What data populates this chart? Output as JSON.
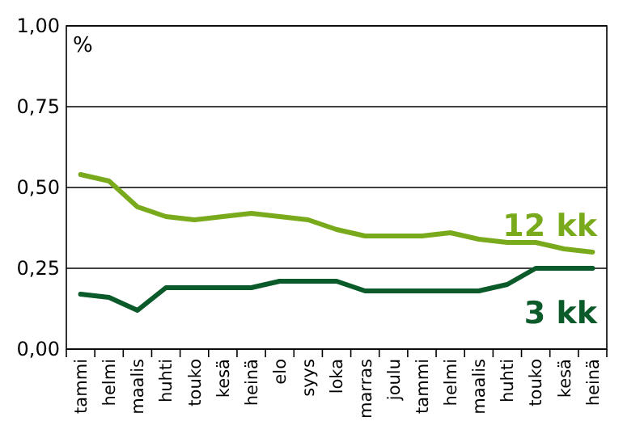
{
  "chart_data": {
    "type": "line",
    "ylabel": "%",
    "categories": [
      "tammi",
      "helmi",
      "maalis",
      "huhti",
      "touko",
      "kesä",
      "heinä",
      "elo",
      "syys",
      "loka",
      "marras",
      "joulu",
      "tammi",
      "helmi",
      "maalis",
      "huhti",
      "touko",
      "kesä",
      "heinä"
    ],
    "series": [
      {
        "name": "12 kk",
        "color": "#78aa1c",
        "values": [
          0.54,
          0.52,
          0.44,
          0.41,
          0.4,
          0.41,
          0.42,
          0.41,
          0.4,
          0.37,
          0.35,
          0.35,
          0.35,
          0.36,
          0.34,
          0.33,
          0.33,
          0.31,
          0.3
        ]
      },
      {
        "name": "3 kk",
        "color": "#0b5a2a",
        "values": [
          0.17,
          0.16,
          0.12,
          0.19,
          0.19,
          0.19,
          0.19,
          0.21,
          0.21,
          0.21,
          0.18,
          0.18,
          0.18,
          0.18,
          0.18,
          0.2,
          0.25,
          0.25,
          0.25
        ]
      }
    ],
    "ylim": [
      0,
      1
    ],
    "yticks": [
      {
        "value": 0,
        "label": "0,00"
      },
      {
        "value": 0.25,
        "label": "0,25"
      },
      {
        "value": 0.5,
        "label": "0,50"
      },
      {
        "value": 0.75,
        "label": "0,75"
      },
      {
        "value": 1,
        "label": "1,00"
      }
    ],
    "grid": "y",
    "marker": "none",
    "line_style": "solid"
  }
}
